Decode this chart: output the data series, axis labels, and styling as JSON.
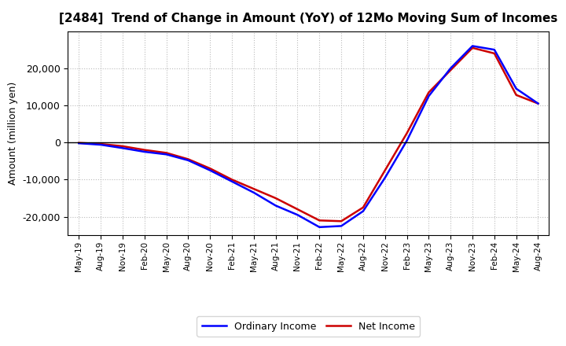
{
  "title": "[2484]  Trend of Change in Amount (YoY) of 12Mo Moving Sum of Incomes",
  "ylabel": "Amount (million yen)",
  "ordinary_income": {
    "values": [
      -200,
      -600,
      -1500,
      -2500,
      -3200,
      -4800,
      -7500,
      -10500,
      -13500,
      -17000,
      -19500,
      -22800,
      -22500,
      -18500,
      -9500,
      500,
      12500,
      20000,
      26000,
      25000,
      14500,
      10500
    ]
  },
  "net_income": {
    "values": [
      -100,
      -400,
      -1000,
      -2000,
      -2800,
      -4500,
      -7000,
      -10000,
      -12500,
      -15000,
      -18000,
      -21000,
      -21200,
      -17500,
      -7500,
      2500,
      13500,
      19500,
      25500,
      24000,
      12800,
      10500
    ]
  },
  "tick_labels": [
    "May-19",
    "Aug-19",
    "Nov-19",
    "Feb-20",
    "May-20",
    "Aug-20",
    "Nov-20",
    "Feb-21",
    "May-21",
    "Aug-21",
    "Nov-21",
    "Feb-22",
    "May-22",
    "Aug-22",
    "Nov-22",
    "Feb-23",
    "May-23",
    "Aug-23",
    "Nov-23",
    "Feb-24",
    "May-24",
    "Aug-24"
  ],
  "ordinary_income_color": "#0000FF",
  "net_income_color": "#CC0000",
  "line_width": 1.8,
  "background_color": "#FFFFFF",
  "grid_color": "#BBBBBB",
  "ylim": [
    -25000,
    30000
  ],
  "yticks": [
    -20000,
    -10000,
    0,
    10000,
    20000
  ]
}
